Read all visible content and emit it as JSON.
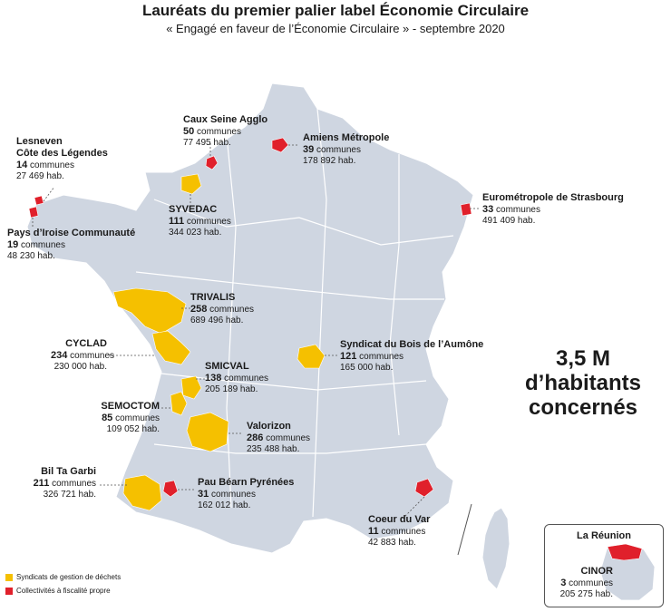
{
  "header": {
    "title": "Lauréats du premier palier label Économie Circulaire",
    "subtitle": "« Engagé en faveur de l’Économie Circulaire » - septembre 2020"
  },
  "summary": {
    "line1": "3,5 M",
    "line2": "d’habitants",
    "line3": "concernés"
  },
  "colors": {
    "map_fill": "#cfd6e1",
    "syndicat": "#f5c000",
    "collectivite": "#e0202b"
  },
  "legend": [
    {
      "label": "Syndicats de gestion de déchets",
      "color": "#f5c000"
    },
    {
      "label": "Collectivités à fiscalité propre",
      "color": "#e0202b"
    }
  ],
  "laureates": [
    {
      "name": "Caux Seine Agglo",
      "communes_count": "50",
      "communes_word": "communes",
      "population": "77 495 hab.",
      "type": "collectivite"
    },
    {
      "name": "Amiens Métropole",
      "communes_count": "39",
      "communes_word": "communes",
      "population": "178 892 hab.",
      "type": "collectivite"
    },
    {
      "name": "Lesneven Côte des Légendes",
      "name_line1": "Lesneven",
      "name_line2": "Côte des Légendes",
      "communes_count": "14",
      "communes_word": "communes",
      "population": "27 469 hab.",
      "type": "collectivite"
    },
    {
      "name": "Eurométropole de Strasbourg",
      "communes_count": "33",
      "communes_word": "communes",
      "population": "491 409 hab.",
      "type": "collectivite"
    },
    {
      "name": "SYVEDAC",
      "communes_count": "111",
      "communes_word": "communes",
      "population": "344 023 hab.",
      "type": "syndicat"
    },
    {
      "name": "Pays d’Iroise Communauté",
      "communes_count": "19",
      "communes_word": "communes",
      "population": "48 230 hab.",
      "type": "collectivite"
    },
    {
      "name": "TRIVALIS",
      "communes_count": "258",
      "communes_word": "communes",
      "population": "689 496 hab.",
      "type": "syndicat"
    },
    {
      "name": "CYCLAD",
      "communes_count": "234",
      "communes_word": "communes",
      "population": "230 000 hab.",
      "type": "syndicat"
    },
    {
      "name": "Syndicat du Bois de l’Aumône",
      "communes_count": "121",
      "communes_word": "communes",
      "population": "165 000 hab.",
      "type": "syndicat"
    },
    {
      "name": "SMICVAL",
      "communes_count": "138",
      "communes_word": "communes",
      "population": "205 189 hab.",
      "type": "syndicat"
    },
    {
      "name": "SEMOCTOM",
      "communes_count": "85",
      "communes_word": "communes",
      "population": "109 052 hab.",
      "type": "syndicat"
    },
    {
      "name": "Valorizon",
      "communes_count": "286",
      "communes_word": "communes",
      "population": "235 488 hab.",
      "type": "syndicat"
    },
    {
      "name": "Bil Ta Garbi",
      "communes_count": "211",
      "communes_word": "communes",
      "population": "326 721 hab.",
      "type": "syndicat"
    },
    {
      "name": "Pau Béarn Pyrénées",
      "communes_count": "31",
      "communes_word": "communes",
      "population": "162 012 hab.",
      "type": "collectivite"
    },
    {
      "name": "Coeur du Var",
      "communes_count": "11",
      "communes_word": "communes",
      "population": "42 883 hab.",
      "type": "collectivite"
    },
    {
      "name": "CINOR",
      "communes_count": "3",
      "communes_word": "communes",
      "population": "205 275 hab.",
      "type": "collectivite"
    }
  ],
  "inset": {
    "title": "La Réunion"
  }
}
